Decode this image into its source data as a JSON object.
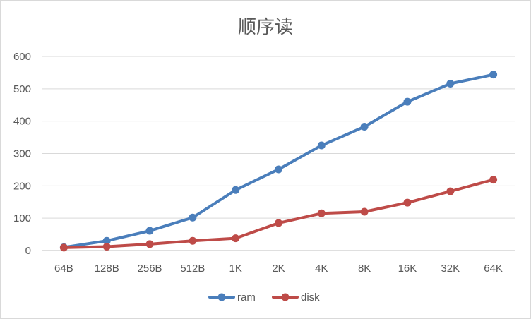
{
  "chart_data": {
    "type": "line",
    "title": "顺序读",
    "xlabel": "",
    "ylabel": "",
    "categories": [
      "64B",
      "128B",
      "256B",
      "512B",
      "1K",
      "2K",
      "4K",
      "8K",
      "16K",
      "32K",
      "64K"
    ],
    "yticks": [
      "0",
      "100",
      "200",
      "300",
      "400",
      "500",
      "600"
    ],
    "ylim": [
      0,
      600
    ],
    "grid": true,
    "legend": "bottom",
    "series": [
      {
        "name": "ram",
        "color": "#4a7ebb",
        "values": [
          10,
          30,
          61,
          102,
          187,
          251,
          325,
          383,
          460,
          516,
          544
        ]
      },
      {
        "name": "disk",
        "color": "#be4b48",
        "values": [
          9,
          12,
          20,
          30,
          38,
          85,
          115,
          120,
          148,
          183,
          219
        ]
      }
    ]
  }
}
